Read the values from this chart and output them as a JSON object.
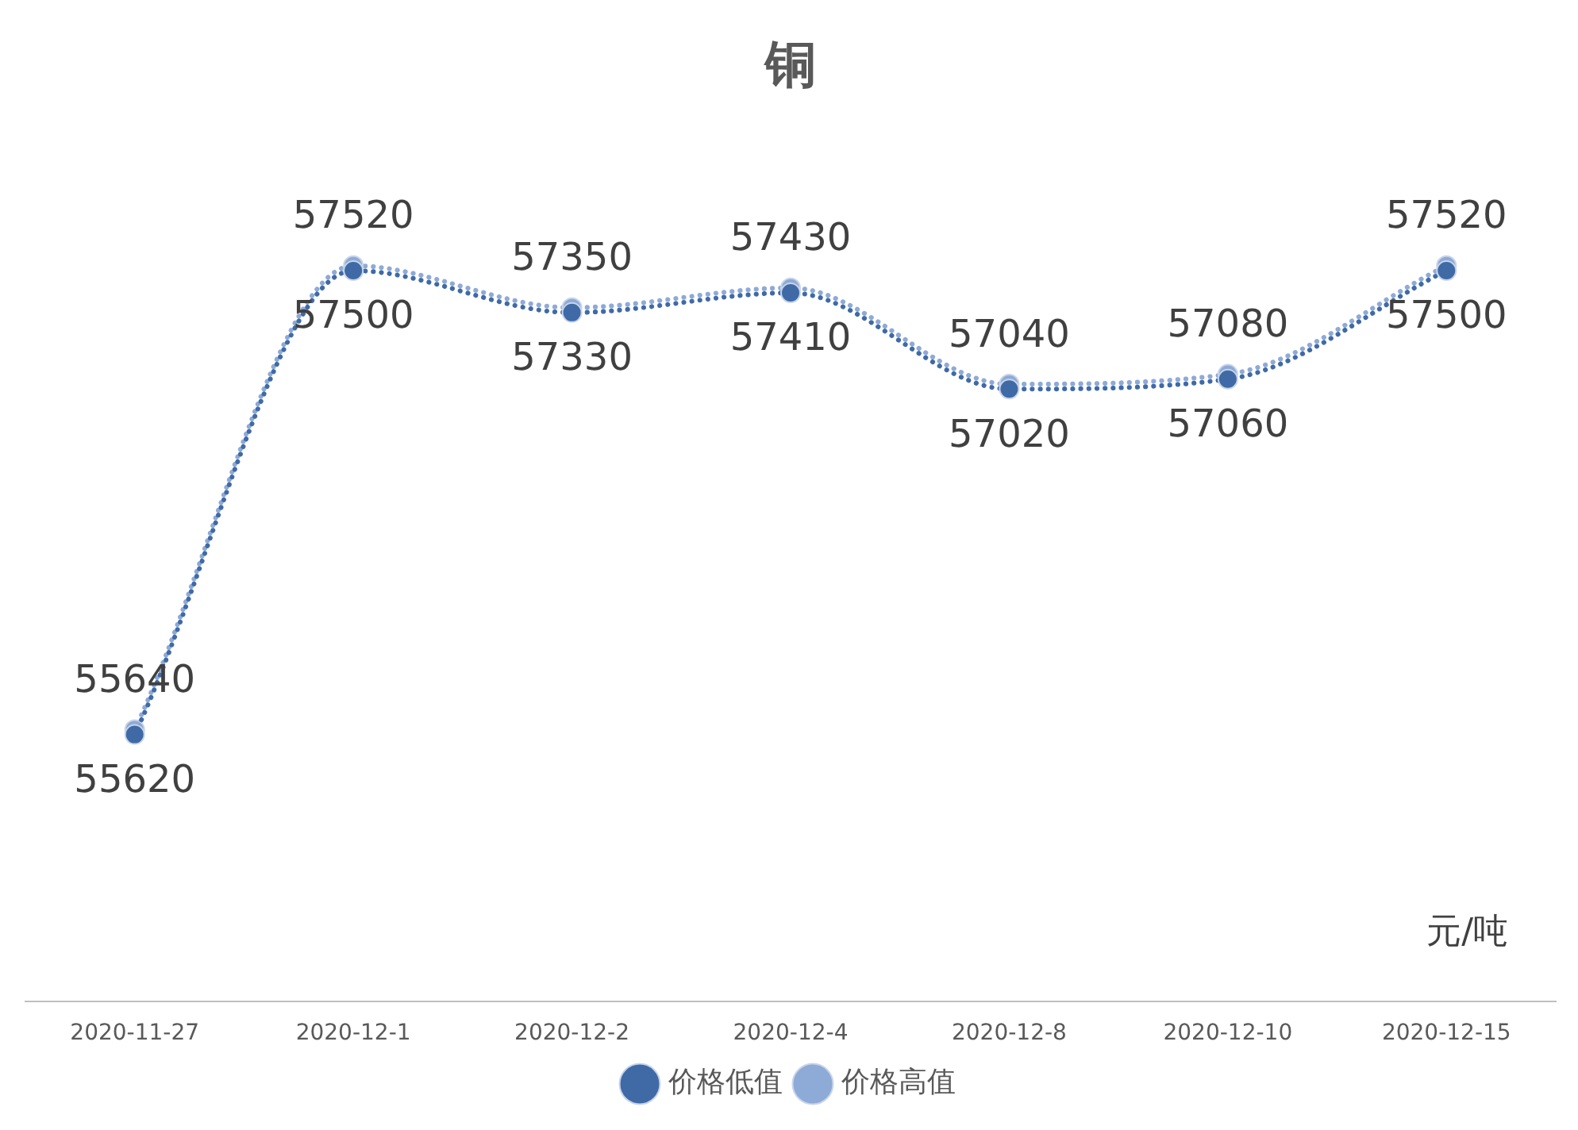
{
  "chart_data": {
    "type": "line",
    "title": "铜",
    "categories": [
      "2020-11-27",
      "2020-12-1",
      "2020-12-2",
      "2020-12-4",
      "2020-12-8",
      "2020-12-10",
      "2020-12-15"
    ],
    "series": [
      {
        "name": "价格低值",
        "color": "#3f6aa6",
        "values": [
          55620,
          57500,
          57330,
          57410,
          57020,
          57060,
          57500
        ]
      },
      {
        "name": "价格高值",
        "color": "#8eaad6",
        "values": [
          55640,
          57520,
          57350,
          57430,
          57040,
          57080,
          57520
        ]
      }
    ],
    "annotations": [
      "元/吨"
    ],
    "data_labels": true,
    "legend": "bottom",
    "marker": "circle",
    "line_style": "dotted",
    "grid": false,
    "tick_labels": "x"
  }
}
